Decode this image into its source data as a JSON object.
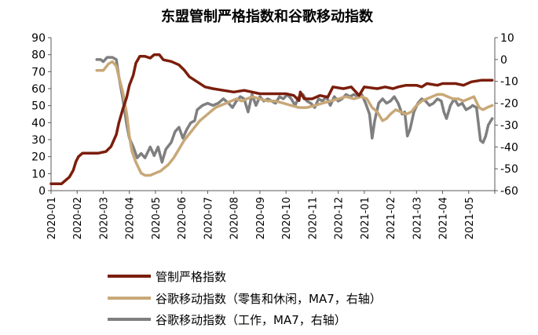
{
  "chart_data": {
    "type": "line",
    "title": "东盟管制严格指数和谷歌移动指数",
    "x_ticks": [
      "2020-01",
      "2020-02",
      "2020-03",
      "2020-04",
      "2020-05",
      "2020-06",
      "2020-07",
      "2020-08",
      "2020-09",
      "2020-10",
      "2020-11",
      "2020-12",
      "2021-01",
      "2021-02",
      "2021-03",
      "2021-04",
      "2021-05"
    ],
    "left_axis": {
      "ylim": [
        0,
        90
      ],
      "ticks": [
        "0",
        "10",
        "20",
        "30",
        "40",
        "50",
        "60",
        "70",
        "80",
        "90"
      ]
    },
    "right_axis": {
      "ylim": [
        -60,
        10
      ],
      "ticks": [
        "-60",
        "-50",
        "-40",
        "-30",
        "-20",
        "-10",
        "0",
        "10"
      ]
    },
    "x_range": [
      0,
      17.0
    ],
    "series": [
      {
        "name": "管制严格指数",
        "axis": "left",
        "color": "#7B1E0C",
        "points": [
          [
            0.0,
            4
          ],
          [
            0.4,
            4
          ],
          [
            0.55,
            6
          ],
          [
            0.7,
            8
          ],
          [
            0.85,
            12
          ],
          [
            0.95,
            17
          ],
          [
            1.05,
            20
          ],
          [
            1.2,
            22
          ],
          [
            1.5,
            22
          ],
          [
            1.8,
            22
          ],
          [
            2.1,
            23
          ],
          [
            2.3,
            26
          ],
          [
            2.5,
            33
          ],
          [
            2.6,
            40
          ],
          [
            2.75,
            48
          ],
          [
            2.9,
            55
          ],
          [
            3.0,
            62
          ],
          [
            3.15,
            68
          ],
          [
            3.25,
            75
          ],
          [
            3.4,
            79
          ],
          [
            3.6,
            79
          ],
          [
            3.8,
            78
          ],
          [
            3.95,
            80
          ],
          [
            4.15,
            80
          ],
          [
            4.3,
            77
          ],
          [
            4.6,
            76
          ],
          [
            4.9,
            74
          ],
          [
            5.1,
            71
          ],
          [
            5.3,
            67
          ],
          [
            5.6,
            64
          ],
          [
            5.9,
            61
          ],
          [
            6.2,
            60
          ],
          [
            6.6,
            59
          ],
          [
            7.0,
            58
          ],
          [
            7.4,
            59
          ],
          [
            7.7,
            58
          ],
          [
            8.0,
            57
          ],
          [
            8.5,
            57
          ],
          [
            9.0,
            57
          ],
          [
            9.3,
            56
          ],
          [
            9.5,
            53
          ],
          [
            9.55,
            58
          ],
          [
            9.7,
            54
          ],
          [
            10.0,
            54
          ],
          [
            10.3,
            56
          ],
          [
            10.6,
            55
          ],
          [
            10.8,
            61
          ],
          [
            11.2,
            60
          ],
          [
            11.5,
            61
          ],
          [
            11.8,
            56
          ],
          [
            12.0,
            61
          ],
          [
            12.5,
            60
          ],
          [
            12.8,
            61
          ],
          [
            13.1,
            60
          ],
          [
            13.3,
            61
          ],
          [
            13.6,
            62
          ],
          [
            14.0,
            62
          ],
          [
            14.2,
            61
          ],
          [
            14.4,
            63
          ],
          [
            14.8,
            62
          ],
          [
            15.0,
            63
          ],
          [
            15.5,
            63
          ],
          [
            15.8,
            62
          ],
          [
            16.1,
            64
          ],
          [
            16.5,
            65
          ],
          [
            16.9,
            65
          ]
        ]
      },
      {
        "name": "谷歌移动指数（零售和休闲，MA7，右轴）",
        "axis": "right",
        "color": "#C8A878",
        "points": [
          [
            1.75,
            -5
          ],
          [
            2.0,
            -5
          ],
          [
            2.2,
            -2
          ],
          [
            2.35,
            -1
          ],
          [
            2.5,
            -3
          ],
          [
            2.6,
            -8
          ],
          [
            2.75,
            -15
          ],
          [
            2.9,
            -25
          ],
          [
            3.0,
            -35
          ],
          [
            3.1,
            -42
          ],
          [
            3.25,
            -47
          ],
          [
            3.45,
            -52
          ],
          [
            3.6,
            -53
          ],
          [
            3.8,
            -53
          ],
          [
            4.0,
            -52
          ],
          [
            4.2,
            -51
          ],
          [
            4.3,
            -50
          ],
          [
            4.5,
            -48
          ],
          [
            4.7,
            -45
          ],
          [
            4.9,
            -41
          ],
          [
            5.1,
            -37
          ],
          [
            5.3,
            -34
          ],
          [
            5.5,
            -31
          ],
          [
            5.7,
            -28
          ],
          [
            5.9,
            -26
          ],
          [
            6.1,
            -24
          ],
          [
            6.3,
            -22
          ],
          [
            6.5,
            -21
          ],
          [
            6.7,
            -20
          ],
          [
            6.9,
            -19
          ],
          [
            7.1,
            -18
          ],
          [
            7.3,
            -19
          ],
          [
            7.5,
            -18
          ],
          [
            7.7,
            -17
          ],
          [
            8.0,
            -18
          ],
          [
            8.3,
            -19
          ],
          [
            8.6,
            -19
          ],
          [
            8.9,
            -20
          ],
          [
            9.2,
            -21
          ],
          [
            9.5,
            -22
          ],
          [
            9.8,
            -22
          ],
          [
            10.1,
            -21
          ],
          [
            10.4,
            -20
          ],
          [
            10.7,
            -19
          ],
          [
            11.0,
            -18
          ],
          [
            11.3,
            -17
          ],
          [
            11.6,
            -18
          ],
          [
            11.9,
            -17
          ],
          [
            12.1,
            -18
          ],
          [
            12.3,
            -22
          ],
          [
            12.5,
            -24
          ],
          [
            12.7,
            -28
          ],
          [
            12.85,
            -27
          ],
          [
            13.0,
            -25
          ],
          [
            13.2,
            -23
          ],
          [
            13.4,
            -24
          ],
          [
            13.6,
            -25
          ],
          [
            13.8,
            -24
          ],
          [
            14.0,
            -21
          ],
          [
            14.2,
            -19
          ],
          [
            14.4,
            -18
          ],
          [
            14.6,
            -17
          ],
          [
            14.8,
            -16
          ],
          [
            15.0,
            -16
          ],
          [
            15.2,
            -17
          ],
          [
            15.4,
            -18
          ],
          [
            15.6,
            -18
          ],
          [
            15.8,
            -19
          ],
          [
            16.0,
            -18
          ],
          [
            16.2,
            -17
          ],
          [
            16.4,
            -22
          ],
          [
            16.55,
            -23
          ],
          [
            16.7,
            -22
          ],
          [
            16.9,
            -21
          ]
        ]
      },
      {
        "name": "谷歌移动指数（工作，MA7，右轴）",
        "axis": "right",
        "color": "#7F7F7F",
        "points": [
          [
            1.75,
            0
          ],
          [
            1.9,
            0
          ],
          [
            2.0,
            -1
          ],
          [
            2.15,
            1
          ],
          [
            2.35,
            1
          ],
          [
            2.5,
            0
          ],
          [
            2.6,
            -8
          ],
          [
            2.75,
            -18
          ],
          [
            2.9,
            -30
          ],
          [
            3.0,
            -36
          ],
          [
            3.15,
            -40
          ],
          [
            3.3,
            -45
          ],
          [
            3.45,
            -43
          ],
          [
            3.6,
            -45
          ],
          [
            3.8,
            -40
          ],
          [
            3.95,
            -44
          ],
          [
            4.1,
            -40
          ],
          [
            4.25,
            -47
          ],
          [
            4.4,
            -41
          ],
          [
            4.6,
            -38
          ],
          [
            4.75,
            -33
          ],
          [
            4.9,
            -31
          ],
          [
            5.05,
            -36
          ],
          [
            5.2,
            -32
          ],
          [
            5.35,
            -29
          ],
          [
            5.5,
            -28
          ],
          [
            5.6,
            -23
          ],
          [
            5.8,
            -21
          ],
          [
            6.0,
            -20
          ],
          [
            6.2,
            -21
          ],
          [
            6.4,
            -20
          ],
          [
            6.6,
            -18
          ],
          [
            6.8,
            -20
          ],
          [
            6.95,
            -22
          ],
          [
            7.1,
            -19
          ],
          [
            7.25,
            -17
          ],
          [
            7.4,
            -18
          ],
          [
            7.55,
            -24
          ],
          [
            7.7,
            -16
          ],
          [
            7.85,
            -21
          ],
          [
            8.0,
            -17
          ],
          [
            8.15,
            -19
          ],
          [
            8.3,
            -18
          ],
          [
            8.45,
            -19
          ],
          [
            8.6,
            -20
          ],
          [
            8.75,
            -17
          ],
          [
            8.9,
            -18
          ],
          [
            9.05,
            -16
          ],
          [
            9.2,
            -18
          ],
          [
            9.35,
            -21
          ],
          [
            9.5,
            -17
          ],
          [
            9.65,
            -16
          ],
          [
            9.8,
            -19
          ],
          [
            9.95,
            -20
          ],
          [
            10.1,
            -22
          ],
          [
            10.25,
            -18
          ],
          [
            10.4,
            -19
          ],
          [
            10.55,
            -17
          ],
          [
            10.7,
            -21
          ],
          [
            10.85,
            -17
          ],
          [
            11.0,
            -19
          ],
          [
            11.15,
            -18
          ],
          [
            11.3,
            -16
          ],
          [
            11.45,
            -17
          ],
          [
            11.6,
            -16
          ],
          [
            11.75,
            -17
          ],
          [
            11.9,
            -16
          ],
          [
            12.05,
            -20
          ],
          [
            12.2,
            -25
          ],
          [
            12.3,
            -36
          ],
          [
            12.4,
            -28
          ],
          [
            12.55,
            -20
          ],
          [
            12.7,
            -18
          ],
          [
            12.85,
            -20
          ],
          [
            13.0,
            -19
          ],
          [
            13.15,
            -17
          ],
          [
            13.3,
            -20
          ],
          [
            13.45,
            -25
          ],
          [
            13.55,
            -24
          ],
          [
            13.65,
            -35
          ],
          [
            13.75,
            -32
          ],
          [
            13.9,
            -24
          ],
          [
            14.05,
            -20
          ],
          [
            14.2,
            -18
          ],
          [
            14.35,
            -19
          ],
          [
            14.5,
            -21
          ],
          [
            14.65,
            -20
          ],
          [
            14.8,
            -18
          ],
          [
            14.95,
            -19
          ],
          [
            15.05,
            -24
          ],
          [
            15.15,
            -27
          ],
          [
            15.3,
            -21
          ],
          [
            15.45,
            -18
          ],
          [
            15.6,
            -21
          ],
          [
            15.75,
            -20
          ],
          [
            15.9,
            -23
          ],
          [
            16.05,
            -22
          ],
          [
            16.15,
            -21
          ],
          [
            16.3,
            -22
          ],
          [
            16.45,
            -37
          ],
          [
            16.55,
            -38
          ],
          [
            16.65,
            -35
          ],
          [
            16.75,
            -30
          ],
          [
            16.9,
            -27
          ]
        ]
      }
    ]
  },
  "legend": [
    {
      "label": "管制严格指数",
      "color": "#7B1E0C"
    },
    {
      "label": "谷歌移动指数（零售和休闲，MA7，右轴）",
      "color": "#C8A878"
    },
    {
      "label": "谷歌移动指数（工作，MA7，右轴）",
      "color": "#7F7F7F"
    }
  ]
}
